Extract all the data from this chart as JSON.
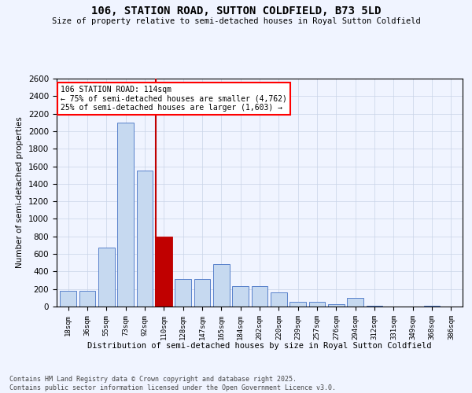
{
  "title": "106, STATION ROAD, SUTTON COLDFIELD, B73 5LD",
  "subtitle": "Size of property relative to semi-detached houses in Royal Sutton Coldfield",
  "xlabel": "Distribution of semi-detached houses by size in Royal Sutton Coldfield",
  "ylabel": "Number of semi-detached properties",
  "categories": [
    "18sqm",
    "36sqm",
    "55sqm",
    "73sqm",
    "92sqm",
    "110sqm",
    "128sqm",
    "147sqm",
    "165sqm",
    "184sqm",
    "202sqm",
    "220sqm",
    "239sqm",
    "257sqm",
    "276sqm",
    "294sqm",
    "312sqm",
    "331sqm",
    "349sqm",
    "368sqm",
    "386sqm"
  ],
  "values": [
    180,
    180,
    670,
    2100,
    1550,
    800,
    310,
    310,
    480,
    230,
    230,
    160,
    50,
    50,
    30,
    100,
    10,
    0,
    0,
    10,
    0
  ],
  "highlight_index": 5,
  "highlight_color": "#c00000",
  "bar_color": "#c6d9f0",
  "bar_edge_color": "#4472c4",
  "ylim": [
    0,
    2600
  ],
  "yticks": [
    0,
    200,
    400,
    600,
    800,
    1000,
    1200,
    1400,
    1600,
    1800,
    2000,
    2200,
    2400,
    2600
  ],
  "annotation_title": "106 STATION ROAD: 114sqm",
  "annotation_line1": "← 75% of semi-detached houses are smaller (4,762)",
  "annotation_line2": "25% of semi-detached houses are larger (1,603) →",
  "footer_line1": "Contains HM Land Registry data © Crown copyright and database right 2025.",
  "footer_line2": "Contains public sector information licensed under the Open Government Licence v3.0.",
  "background_color": "#f0f4ff",
  "grid_color": "#c8d4e8",
  "vline_x": 5
}
